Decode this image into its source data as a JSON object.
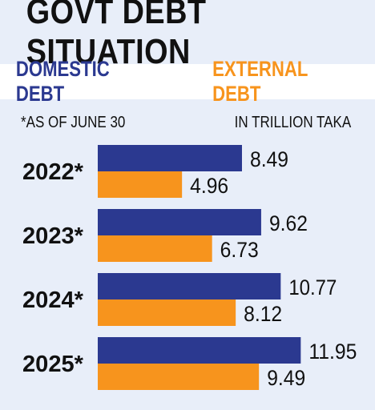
{
  "title": "GOVT DEBT SITUATION",
  "legend": {
    "domestic": "DOMESTIC DEBT",
    "external": "EXTERNAL DEBT"
  },
  "note_left": "*AS OF JUNE 30",
  "note_right": "IN TRILLION TAKA",
  "colors": {
    "domestic": "#2b3990",
    "external": "#f7941d",
    "background": "#e8eef9"
  },
  "chart_data": {
    "type": "bar",
    "orientation": "horizontal",
    "categories": [
      "2022*",
      "2023*",
      "2024*",
      "2025*"
    ],
    "series": [
      {
        "name": "DOMESTIC DEBT",
        "values": [
          8.49,
          9.62,
          10.77,
          11.95
        ],
        "labels": [
          "8.49",
          "9.62",
          "10.77",
          "11.95"
        ]
      },
      {
        "name": "EXTERNAL DEBT",
        "values": [
          4.96,
          6.73,
          8.12,
          9.49
        ],
        "labels": [
          "4.96",
          "6.73",
          "8.12",
          "9.49"
        ]
      }
    ],
    "xlim": [
      0,
      12
    ],
    "grid": false,
    "legend_position": "top"
  }
}
